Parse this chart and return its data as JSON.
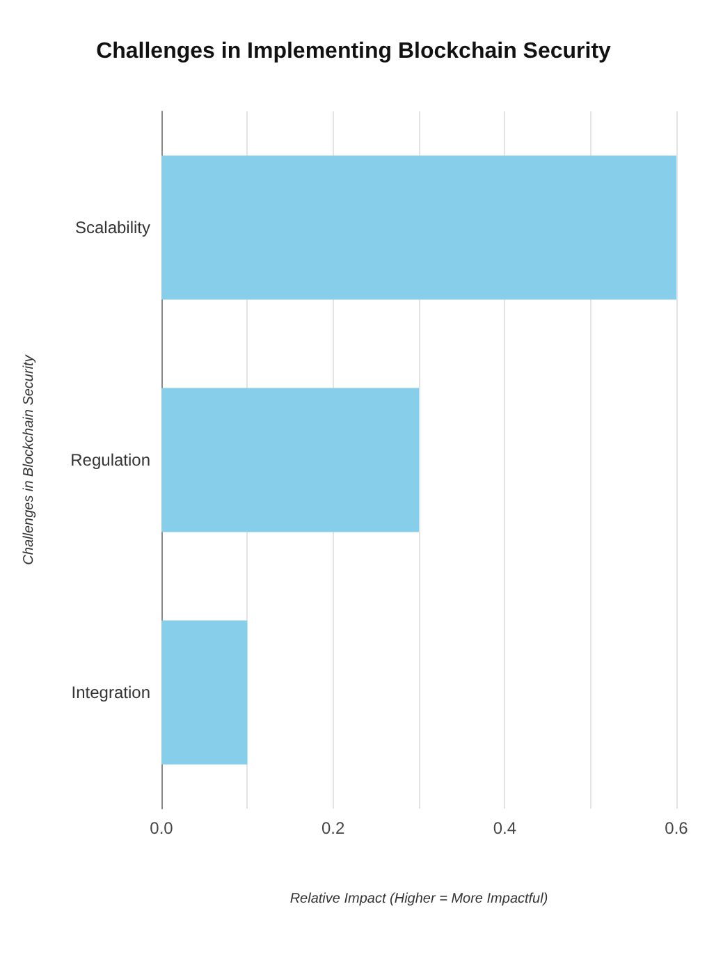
{
  "chart_data": {
    "type": "bar",
    "orientation": "horizontal",
    "title": "Challenges in Implementing Blockchain Security",
    "xlabel": "Relative Impact (Higher = More Impactful)",
    "ylabel": "Challenges in Blockchain Security",
    "categories": [
      "Scalability",
      "Regulation",
      "Integration"
    ],
    "values": [
      0.6,
      0.3,
      0.1
    ],
    "color": "#87ceeb",
    "xlim": [
      0,
      0.6
    ],
    "xticks": [
      {
        "value": 0,
        "label": "0.0"
      },
      {
        "value": 0.1,
        "label": null
      },
      0.2,
      {
        "value": 0.3,
        "label": null
      },
      0.4,
      {
        "value": 0.5,
        "label": null
      },
      0.6
    ],
    "grid": "x"
  }
}
